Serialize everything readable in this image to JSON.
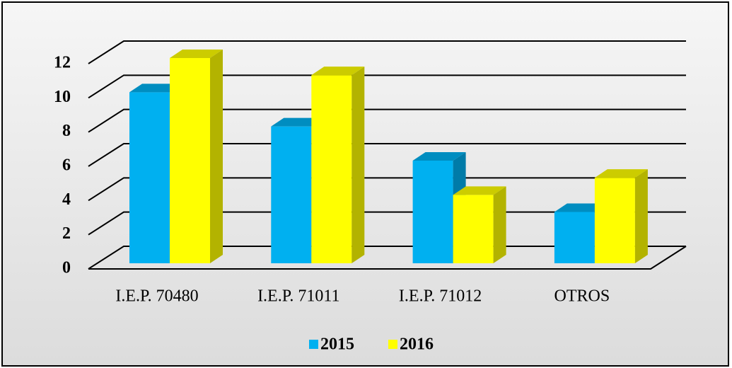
{
  "chart_data": {
    "type": "bar3d",
    "categories": [
      "I.E.P. 70480",
      "I.E.P. 71011",
      "I.E.P. 71012",
      "OTROS"
    ],
    "series": [
      {
        "name": "2015",
        "color": "#00b0f0",
        "values": [
          10,
          8,
          6,
          3
        ]
      },
      {
        "name": "2016",
        "color": "#ffff00",
        "values": [
          12,
          11,
          4,
          5
        ]
      }
    ],
    "ylim": [
      0,
      12
    ],
    "yticks": [
      0,
      2,
      4,
      6,
      8,
      10,
      12
    ],
    "grid": true,
    "legend": "bottom"
  }
}
